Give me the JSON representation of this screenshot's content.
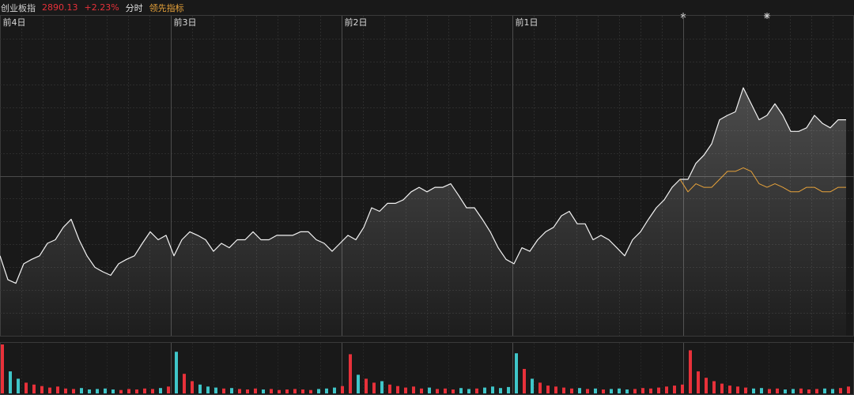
{
  "chart_data": {
    "type": "line",
    "title": "创业板指",
    "last_price": 2890.13,
    "change": "+2.23%",
    "mode": "分时",
    "x": [
      0,
      1,
      2,
      3,
      4,
      5,
      6,
      7,
      8,
      9,
      10,
      11,
      12,
      13,
      14,
      15,
      16,
      17,
      18,
      19,
      20,
      21,
      22,
      23,
      24,
      25,
      26,
      27,
      28,
      29,
      30,
      31,
      32,
      33,
      34,
      35,
      36,
      37,
      38,
      39,
      40,
      41,
      42,
      43,
      44,
      45,
      46,
      47,
      48,
      49,
      50,
      51,
      52,
      53,
      54,
      55,
      56,
      57,
      58,
      59,
      60,
      61,
      62,
      63,
      64,
      65,
      66,
      67,
      68,
      69,
      70,
      71,
      72,
      73,
      74,
      75,
      76,
      77,
      78,
      79,
      80,
      81,
      82,
      83,
      84,
      85,
      86,
      87,
      88,
      89,
      90,
      91,
      92,
      93,
      94,
      95,
      96,
      97,
      98,
      99,
      100,
      101,
      102,
      103,
      104,
      105,
      106,
      107
    ],
    "xlim": [
      0,
      108
    ],
    "xticks": [
      {
        "value": 0,
        "label": "前4日"
      },
      {
        "value": 21.6,
        "label": "前3日"
      },
      {
        "value": 43.2,
        "label": "前2日"
      },
      {
        "value": 64.8,
        "label": "前1日"
      },
      {
        "value": 86.4,
        "label": null
      }
    ],
    "ylim": [
      2647,
      3007
    ],
    "prev_close": 2827,
    "grid": {
      "rows": 14,
      "cols": 40
    },
    "series": [
      {
        "color": "#f2f2f2",
        "values": [
          2737,
          2710,
          2706,
          2728,
          2733,
          2737,
          2751,
          2755,
          2769,
          2778,
          2755,
          2737,
          2724,
          2719,
          2715,
          2728,
          2733,
          2737,
          2751,
          2764,
          2755,
          2760,
          2737,
          2755,
          2764,
          2760,
          2755,
          2742,
          2751,
          2746,
          2755,
          2755,
          2764,
          2755,
          2755,
          2760,
          2760,
          2760,
          2764,
          2764,
          2755,
          2751,
          2742,
          2751,
          2760,
          2755,
          2769,
          2791,
          2787,
          2796,
          2796,
          2800,
          2809,
          2814,
          2809,
          2814,
          2814,
          2818,
          2805,
          2791,
          2791,
          2778,
          2764,
          2746,
          2733,
          2728,
          2746,
          2742,
          2755,
          2764,
          2769,
          2782,
          2787,
          2773,
          2773,
          2755,
          2760,
          2755,
          2746,
          2737,
          2755,
          2764,
          2778,
          2791,
          2800,
          2814,
          2823,
          2823,
          2841,
          2850,
          2863,
          2890,
          2895,
          2899,
          2926,
          2908,
          2890,
          2895,
          2908,
          2895,
          2877,
          2877,
          2881,
          2895,
          2886,
          2881,
          2890,
          2890
        ]
      },
      {
        "name": "领先指标",
        "color": "#e8a33a",
        "values": [
          null,
          null,
          null,
          null,
          null,
          null,
          null,
          null,
          null,
          null,
          null,
          null,
          null,
          null,
          null,
          null,
          null,
          null,
          null,
          null,
          null,
          null,
          null,
          null,
          null,
          null,
          null,
          null,
          null,
          null,
          null,
          null,
          null,
          null,
          null,
          null,
          null,
          null,
          null,
          null,
          null,
          null,
          null,
          null,
          null,
          null,
          null,
          null,
          null,
          null,
          null,
          null,
          null,
          null,
          null,
          null,
          null,
          null,
          null,
          null,
          null,
          null,
          null,
          null,
          null,
          null,
          null,
          null,
          null,
          null,
          null,
          null,
          null,
          null,
          null,
          null,
          null,
          null,
          null,
          null,
          null,
          null,
          null,
          null,
          null,
          null,
          2823,
          2809,
          2818,
          2814,
          2814,
          2823,
          2832,
          2832,
          2836,
          2832,
          2818,
          2814,
          2818,
          2814,
          2809,
          2809,
          2814,
          2814,
          2809,
          2809,
          2814,
          2814
        ]
      }
    ],
    "volume": {
      "ylim": [
        0,
        100
      ],
      "up_color": "#e8313a",
      "down_color": "#3fc6c9",
      "values": [
        100,
        45,
        30,
        22,
        18,
        15,
        12,
        14,
        10,
        9,
        11,
        8,
        9,
        10,
        8,
        7,
        9,
        8,
        10,
        9,
        11,
        14,
        85,
        40,
        25,
        18,
        14,
        12,
        10,
        11,
        9,
        8,
        10,
        8,
        9,
        7,
        8,
        9,
        8,
        7,
        9,
        10,
        12,
        15,
        80,
        38,
        30,
        22,
        25,
        18,
        15,
        12,
        14,
        10,
        12,
        9,
        10,
        8,
        11,
        9,
        10,
        12,
        14,
        11,
        13,
        82,
        50,
        30,
        22,
        16,
        14,
        12,
        10,
        11,
        9,
        10,
        8,
        9,
        10,
        8,
        9,
        11,
        10,
        12,
        14,
        16,
        18,
        88,
        45,
        32,
        25,
        20,
        16,
        14,
        12,
        10,
        11,
        9,
        10,
        8,
        9,
        10,
        8,
        9,
        10,
        9,
        11,
        14
      ]
    }
  }
}
